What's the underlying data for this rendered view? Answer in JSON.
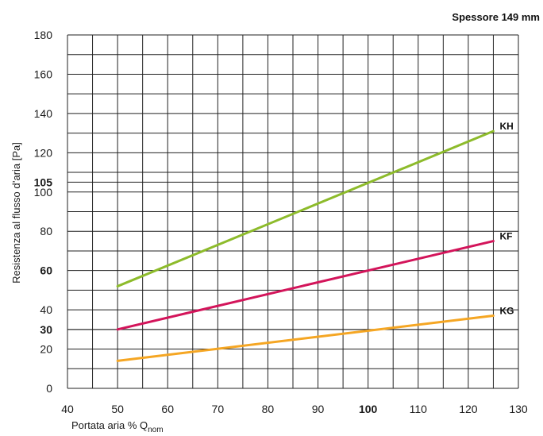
{
  "chart_data": {
    "type": "line",
    "title": "Spessore 149 mm",
    "xlabel": "Portata aria % Q",
    "xlabel_sub": "nom",
    "ylabel": "Resistenza al flusso d’aria [Pa]",
    "xlim": [
      40,
      130
    ],
    "ylim": [
      0,
      180
    ],
    "x_ticks": [
      40,
      50,
      60,
      70,
      80,
      90,
      100,
      110,
      120,
      130
    ],
    "x_ticks_bold": [
      100
    ],
    "y_ticks": [
      0,
      20,
      40,
      60,
      80,
      100,
      120,
      140,
      160,
      180
    ],
    "y_ticks_extra_bold": [
      30,
      105
    ],
    "y_ticks_bold": [
      60
    ],
    "grid": true,
    "series": [
      {
        "name": "KH",
        "color": "#8dbb2b",
        "x": [
          50,
          125
        ],
        "y": [
          52,
          131
        ]
      },
      {
        "name": "KF",
        "color": "#d3145a",
        "x": [
          50,
          125
        ],
        "y": [
          30,
          75
        ]
      },
      {
        "name": "KG",
        "color": "#f5a623",
        "x": [
          50,
          125
        ],
        "y": [
          14,
          37
        ]
      }
    ]
  }
}
